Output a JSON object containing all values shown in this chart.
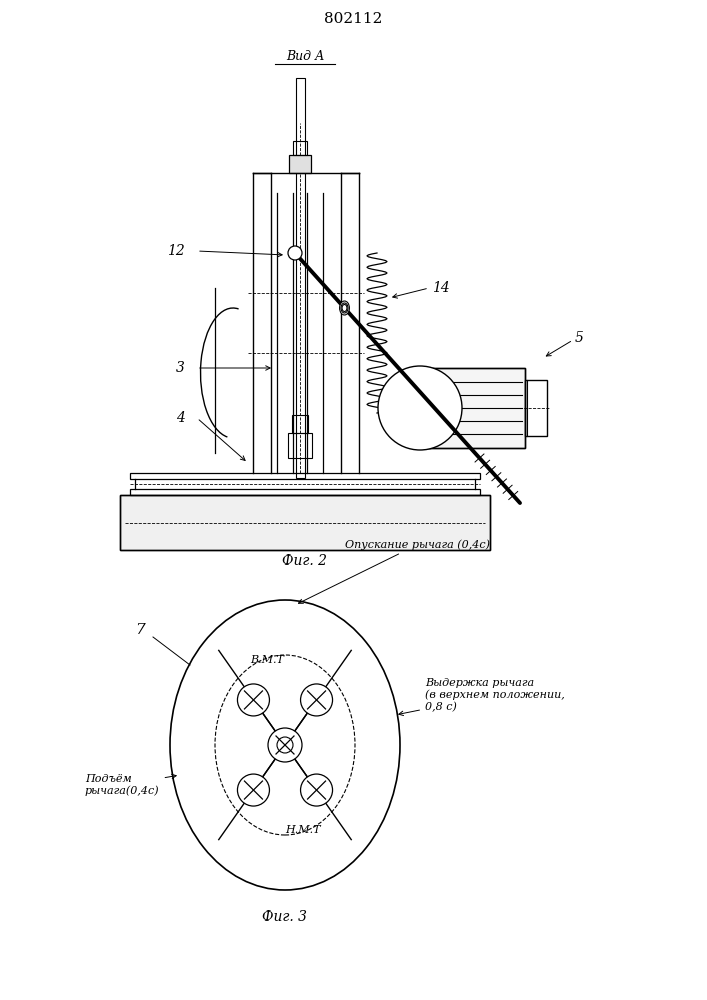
{
  "title": "802112",
  "fig2_label": "Фиг. 2",
  "fig3_label": "Фиг. 3",
  "view_label": "Вид А",
  "label_12": "12",
  "label_14": "14",
  "label_3": "3",
  "label_4": "4",
  "label_5": "5",
  "label_7": "7",
  "annotation_top": "Опускание рычага (0,4с)",
  "annotation_right": "Выдержка рычага\n(в верхнем положении,\n0,8 с)",
  "annotation_left": "Подъём\nрычага(0,4с)",
  "bmt_label": "В.М.Т",
  "nmt_label": "Н.М.Т",
  "line_color": "#000000",
  "bg_color": "#ffffff"
}
